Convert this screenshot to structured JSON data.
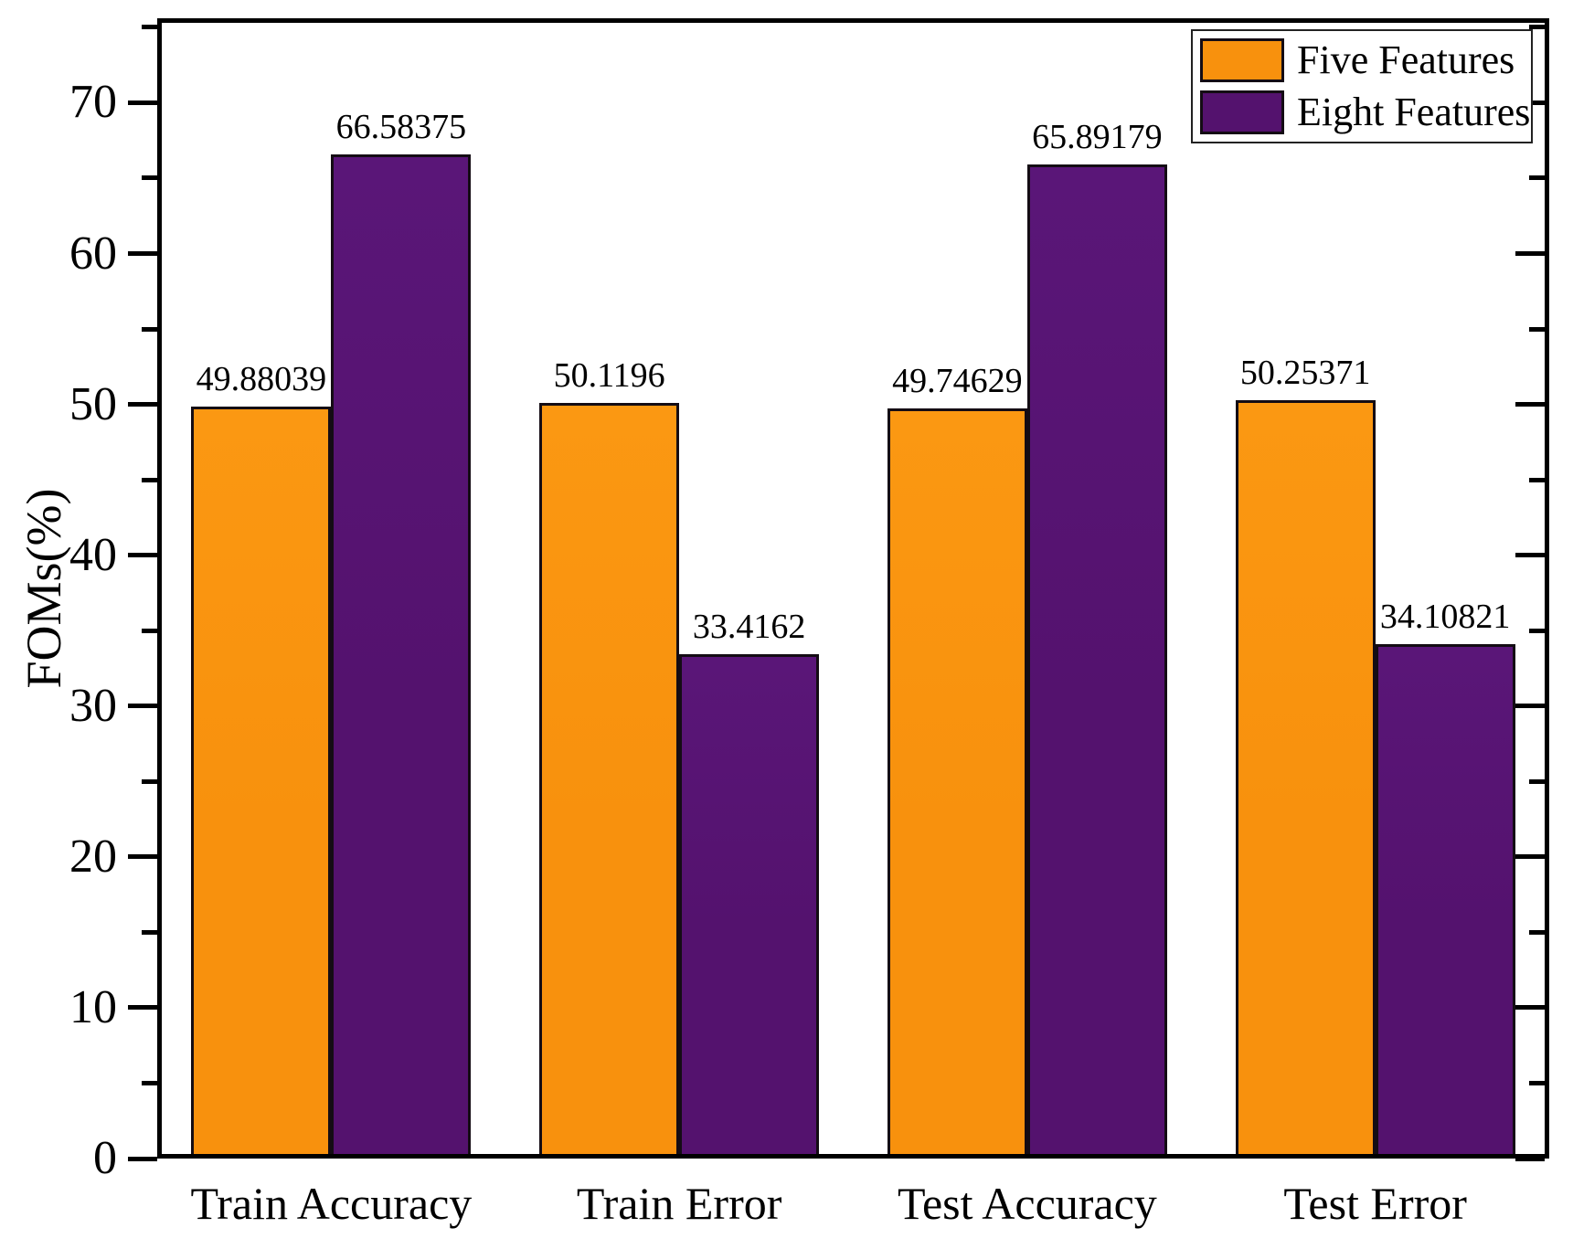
{
  "chart_data": {
    "type": "bar",
    "title": "",
    "xlabel": "",
    "ylabel": "FOMs(%)",
    "categories": [
      "Train Accuracy",
      "Train Error",
      "Test Accuracy",
      "Test Error"
    ],
    "series": [
      {
        "name": "Five Features",
        "color": "#F8910D",
        "color_top": "#FB9812",
        "values": [
          49.88039,
          50.1196,
          49.74629,
          50.25371
        ],
        "labels": [
          "49.88039",
          "50.1196",
          "49.74629",
          "50.25371"
        ]
      },
      {
        "name": "Eight Features",
        "color": "#54126E",
        "color_top": "#5A1678",
        "values": [
          66.58375,
          33.4162,
          65.89179,
          34.10821
        ],
        "labels": [
          "66.58375",
          "33.4162",
          "65.89179",
          "34.10821"
        ]
      }
    ],
    "ylim": [
      0,
      75.6
    ],
    "yticks": [
      0,
      10,
      20,
      30,
      40,
      50,
      60,
      70
    ],
    "minor_tick_step": 5,
    "grid": false,
    "legend_position": "top-right",
    "bar_value_labels": true
  },
  "colors": {
    "axis": "#000000",
    "text": "#000000",
    "background": "#FFFFFF"
  }
}
